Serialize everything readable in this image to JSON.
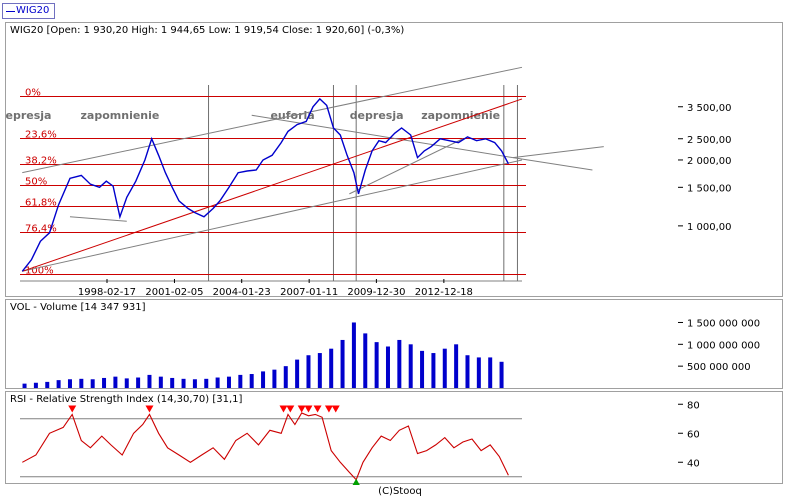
{
  "legend": {
    "label": "WIG20"
  },
  "main": {
    "header": "WIG20 [Open: 1 930,20  High: 1 944,65  Low: 1 919,54  Close: 1 920,60] (-0,3%)"
  },
  "volume": {
    "header": "VOL - Volume [14 347 931]"
  },
  "rsi": {
    "header": "RSI - Relative Strength Index (14,30,70) [31,1]"
  },
  "footer": {
    "credit": "(C)Stooq"
  },
  "colors": {
    "price": "#0000cc",
    "fib": "#cc0000",
    "trend": "#808080",
    "rsi": "#cc0000",
    "marker_high": "#ff0000",
    "marker_low": "#00a000"
  },
  "chart_data": [
    {
      "type": "line",
      "title": "WIG20",
      "scale": "log",
      "x_ticks": [
        "1998-02-17",
        "2001-02-05",
        "2004-01-23",
        "2007-01-11",
        "2009-12-30",
        "2012-12-18"
      ],
      "y_ticks": [
        "1 000,00",
        "1 500,00",
        "2 000,00",
        "2 500,00",
        "3 500,00"
      ],
      "y_tick_values": [
        1000,
        1500,
        2000,
        2500,
        3500
      ],
      "ylim": [
        560,
        4400
      ],
      "xlim": [
        1994.3,
        2016.4
      ],
      "phases": [
        "depresja",
        "zapomnienie",
        "euforia",
        "depresja",
        "zapomnienie"
      ],
      "fib_labels": [
        "0%",
        "23,6%",
        "38,2%",
        "50%",
        "61,8%",
        "76,4%",
        "100%"
      ],
      "fib_ratios": [
        0,
        0.236,
        0.382,
        0.5,
        0.618,
        0.764,
        1.0
      ],
      "fib_low": 600,
      "fib_high": 3900,
      "series": [
        {
          "x": [
            1994.4,
            1994.8,
            1995.2,
            1995.6,
            1996.0,
            1996.5,
            1997.0,
            1997.4,
            1997.8,
            1998.1,
            1998.4,
            1998.7,
            1999.0,
            1999.4,
            1999.8,
            2000.1,
            2000.4,
            2000.7,
            2001.0,
            2001.3,
            2001.7,
            2002.0,
            2002.4,
            2002.8,
            2003.1,
            2003.5,
            2003.9,
            2004.3,
            2004.7,
            2005.0,
            2005.4,
            2005.8,
            2006.1,
            2006.5,
            2006.9,
            2007.2,
            2007.5,
            2007.8,
            2008.1,
            2008.4,
            2008.7,
            2009.0,
            2009.2,
            2009.5,
            2009.8,
            2010.1,
            2010.4,
            2010.8,
            2011.1,
            2011.5,
            2011.8,
            2012.1,
            2012.4,
            2012.8,
            2013.2,
            2013.6,
            2014.0,
            2014.4,
            2014.8,
            2015.2,
            2015.5,
            2015.8
          ],
          "values": [
            620,
            700,
            850,
            930,
            1250,
            1650,
            1700,
            1550,
            1500,
            1600,
            1520,
            1100,
            1350,
            1600,
            2000,
            2500,
            2100,
            1750,
            1500,
            1300,
            1200,
            1150,
            1100,
            1200,
            1300,
            1500,
            1750,
            1780,
            1800,
            2000,
            2100,
            2400,
            2700,
            2900,
            3000,
            3500,
            3800,
            3550,
            2800,
            2600,
            2100,
            1750,
            1400,
            1800,
            2200,
            2450,
            2400,
            2650,
            2800,
            2600,
            2050,
            2200,
            2300,
            2500,
            2450,
            2400,
            2550,
            2450,
            2500,
            2400,
            2200,
            1920
          ]
        }
      ]
    },
    {
      "type": "bar",
      "title": "VOL - Volume",
      "y_ticks": [
        "500 000 000",
        "1 000 000 000",
        "1 500 000 000"
      ],
      "y_tick_values": [
        500000000,
        1000000000,
        1500000000
      ],
      "ylim": [
        0,
        1900000000
      ],
      "xlim": [
        1994.3,
        2016.4
      ],
      "x": [
        1994.5,
        1995.0,
        1995.5,
        1996.0,
        1996.5,
        1997.0,
        1997.5,
        1998.0,
        1998.5,
        1999.0,
        1999.5,
        2000.0,
        2000.5,
        2001.0,
        2001.5,
        2002.0,
        2002.5,
        2003.0,
        2003.5,
        2004.0,
        2004.5,
        2005.0,
        2005.5,
        2006.0,
        2006.5,
        2007.0,
        2007.5,
        2008.0,
        2008.5,
        2009.0,
        2009.5,
        2010.0,
        2010.5,
        2011.0,
        2011.5,
        2012.0,
        2012.5,
        2013.0,
        2013.5,
        2014.0,
        2014.5,
        2015.0,
        2015.5
      ],
      "values": [
        100000000,
        120000000,
        140000000,
        180000000,
        200000000,
        210000000,
        200000000,
        230000000,
        260000000,
        220000000,
        240000000,
        300000000,
        260000000,
        230000000,
        210000000,
        200000000,
        210000000,
        240000000,
        260000000,
        300000000,
        320000000,
        380000000,
        420000000,
        500000000,
        650000000,
        750000000,
        800000000,
        900000000,
        1100000000,
        1500000000,
        1250000000,
        1050000000,
        950000000,
        1100000000,
        1000000000,
        850000000,
        800000000,
        900000000,
        1000000000,
        750000000,
        700000000,
        700000000,
        600000000
      ]
    },
    {
      "type": "line",
      "title": "RSI - Relative Strength Index (14,30,70)",
      "y_ticks": [
        "40",
        "60",
        "80"
      ],
      "y_tick_values": [
        40,
        60,
        80
      ],
      "ylim": [
        25,
        85
      ],
      "xlim": [
        1994.3,
        2016.4
      ],
      "levels": [
        30,
        70
      ],
      "x": [
        1994.4,
        1995.0,
        1995.6,
        1996.2,
        1996.6,
        1997.0,
        1997.4,
        1997.9,
        1998.3,
        1998.8,
        1999.3,
        1999.7,
        2000.0,
        2000.4,
        2000.8,
        2001.3,
        2001.8,
        2002.3,
        2002.8,
        2003.3,
        2003.8,
        2004.3,
        2004.8,
        2005.3,
        2005.8,
        2006.1,
        2006.4,
        2006.7,
        2007.0,
        2007.3,
        2007.6,
        2008.0,
        2008.4,
        2008.8,
        2009.1,
        2009.4,
        2009.8,
        2010.2,
        2010.6,
        2011.0,
        2011.4,
        2011.8,
        2012.2,
        2012.6,
        2013.0,
        2013.4,
        2013.8,
        2014.2,
        2014.6,
        2015.0,
        2015.4,
        2015.8
      ],
      "values": [
        40,
        45,
        60,
        64,
        73,
        55,
        50,
        58,
        52,
        45,
        60,
        66,
        73,
        60,
        50,
        45,
        40,
        45,
        50,
        42,
        55,
        60,
        52,
        62,
        60,
        73,
        66,
        74,
        72,
        73,
        71,
        48,
        40,
        33,
        28,
        40,
        50,
        58,
        55,
        62,
        65,
        46,
        48,
        52,
        57,
        50,
        54,
        56,
        48,
        52,
        44,
        31
      ],
      "high_markers_x": [
        1996.6,
        2000.0,
        2005.9,
        2006.2,
        2006.7,
        2007.0,
        2007.4,
        2007.9,
        2008.2
      ],
      "low_markers_x": [
        2009.1
      ]
    }
  ]
}
